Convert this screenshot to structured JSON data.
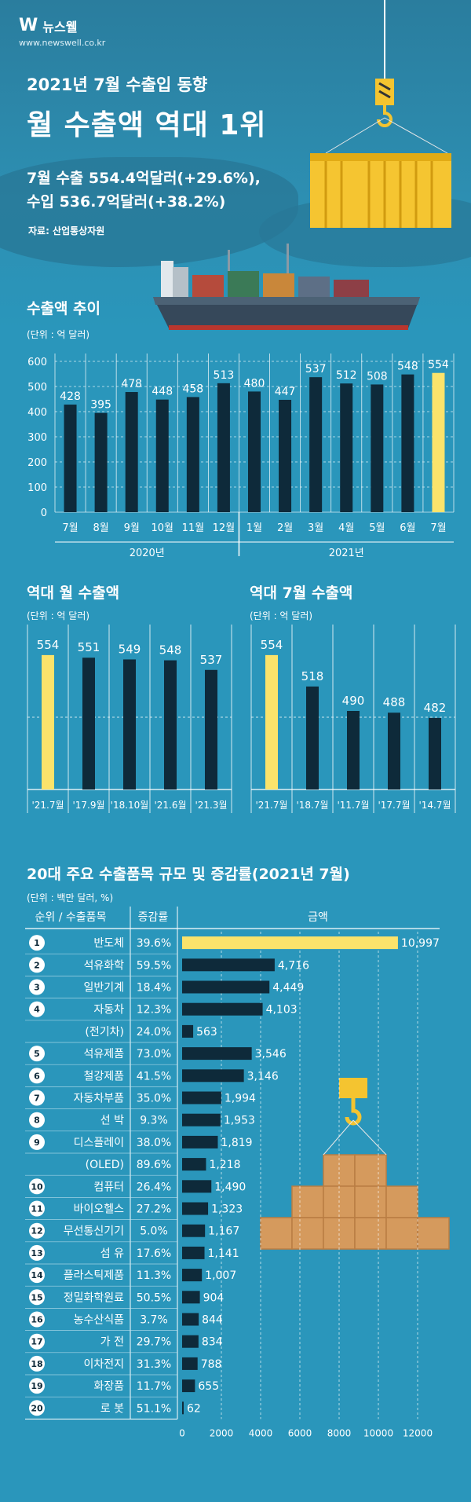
{
  "brand": {
    "name": "뉴스웰",
    "url": "www.newswell.co.kr"
  },
  "header": {
    "subtitle": "2021년 7월 수출입 동향",
    "title": "월 수출액 역대 1위",
    "export_line": "7월 수출 554.4억달러(+29.6%),",
    "import_line": "수입 536.7억달러(+38.2%)",
    "source": "자료: 산업통상자원"
  },
  "colors": {
    "bar_dark": "#0e2a3a",
    "highlight": "#fbe36b",
    "background": "#2a96bb"
  },
  "icons": [
    "container-ship-icon",
    "shipping-container-icon",
    "crane-hook-icon",
    "cargo-boxes-icon"
  ],
  "chart_data": [
    {
      "type": "bar",
      "title": "수출액 추이",
      "unit": "(단위 : 억 달러)",
      "categories": [
        "7월",
        "8월",
        "9월",
        "10월",
        "11월",
        "12월",
        "1월",
        "2월",
        "3월",
        "4월",
        "5월",
        "6월",
        "7월"
      ],
      "values": [
        428,
        395,
        478,
        448,
        458,
        513,
        480,
        447,
        537,
        512,
        508,
        548,
        554
      ],
      "highlight_index": 12,
      "groups": [
        {
          "label": "2020년",
          "from": 0,
          "to": 5
        },
        {
          "label": "2021년",
          "from": 6,
          "to": 12
        }
      ],
      "ylim": [
        0,
        600
      ],
      "yticks": [
        0,
        100,
        200,
        300,
        400,
        500,
        600
      ],
      "grid": true
    },
    {
      "type": "bar",
      "title": "역대 월 수출액",
      "unit": "(단위 : 억 달러)",
      "categories": [
        "'21.7월",
        "'17.9월",
        "'18.10월",
        "'21.6월",
        "'21.3월"
      ],
      "values": [
        554,
        551,
        549,
        548,
        537
      ],
      "highlight_index": 0
    },
    {
      "type": "bar",
      "title": "역대 7월 수출액",
      "unit": "(단위 : 억 달러)",
      "categories": [
        "'21.7월",
        "'18.7월",
        "'11.7월",
        "'17.7월",
        "'14.7월"
      ],
      "values": [
        554,
        518,
        490,
        488,
        482
      ],
      "highlight_index": 0
    },
    {
      "type": "table",
      "title": "20대 주요 수출품목 규모 및 증감률(2021년 7월)",
      "unit": "(단위 : 백만 달러, %)",
      "columns": [
        "순위 / 수출품목",
        "증감률",
        "금액"
      ],
      "rows": [
        {
          "rank": "1",
          "item": "반도체",
          "growth": "39.6%",
          "amount": 10997,
          "amount_label": "10,997"
        },
        {
          "rank": "2",
          "item": "석유화학",
          "growth": "59.5%",
          "amount": 4716,
          "amount_label": "4,716"
        },
        {
          "rank": "3",
          "item": "일반기계",
          "growth": "18.4%",
          "amount": 4449,
          "amount_label": "4,449"
        },
        {
          "rank": "4",
          "item": "자동차",
          "growth": "12.3%",
          "amount": 4103,
          "amount_label": "4,103"
        },
        {
          "rank": "",
          "item": "(전기차)",
          "growth": "24.0%",
          "amount": 563,
          "amount_label": "563"
        },
        {
          "rank": "5",
          "item": "석유제품",
          "growth": "73.0%",
          "amount": 3546,
          "amount_label": "3,546"
        },
        {
          "rank": "6",
          "item": "철강제품",
          "growth": "41.5%",
          "amount": 3146,
          "amount_label": "3,146"
        },
        {
          "rank": "7",
          "item": "자동차부품",
          "growth": "35.0%",
          "amount": 1994,
          "amount_label": "1,994"
        },
        {
          "rank": "8",
          "item": "선 박",
          "growth": "9.3%",
          "amount": 1953,
          "amount_label": "1,953"
        },
        {
          "rank": "9",
          "item": "디스플레이",
          "growth": "38.0%",
          "amount": 1819,
          "amount_label": "1,819"
        },
        {
          "rank": "",
          "item": "(OLED)",
          "growth": "89.6%",
          "amount": 1218,
          "amount_label": "1,218"
        },
        {
          "rank": "10",
          "item": "컴퓨터",
          "growth": "26.4%",
          "amount": 1490,
          "amount_label": "1,490"
        },
        {
          "rank": "11",
          "item": "바이오헬스",
          "growth": "27.2%",
          "amount": 1323,
          "amount_label": "1,323"
        },
        {
          "rank": "12",
          "item": "무선통신기기",
          "growth": "5.0%",
          "amount": 1167,
          "amount_label": "1,167"
        },
        {
          "rank": "13",
          "item": "섬 유",
          "growth": "17.6%",
          "amount": 1141,
          "amount_label": "1,141"
        },
        {
          "rank": "14",
          "item": "플라스틱제품",
          "growth": "11.3%",
          "amount": 1007,
          "amount_label": "1,007"
        },
        {
          "rank": "15",
          "item": "정밀화학원료",
          "growth": "50.5%",
          "amount": 904,
          "amount_label": "904"
        },
        {
          "rank": "16",
          "item": "농수산식품",
          "growth": "3.7%",
          "amount": 844,
          "amount_label": "844"
        },
        {
          "rank": "17",
          "item": "가 전",
          "growth": "29.7%",
          "amount": 834,
          "amount_label": "834"
        },
        {
          "rank": "18",
          "item": "이차전지",
          "growth": "31.3%",
          "amount": 788,
          "amount_label": "788"
        },
        {
          "rank": "19",
          "item": "화장품",
          "growth": "11.7%",
          "amount": 655,
          "amount_label": "655"
        },
        {
          "rank": "20",
          "item": "로 봇",
          "growth": "51.1%",
          "amount": 62,
          "amount_label": "62"
        }
      ],
      "xlim": [
        0,
        12000
      ],
      "xticks": [
        0,
        2000,
        4000,
        6000,
        8000,
        10000,
        12000
      ],
      "highlight_index": 0
    }
  ]
}
